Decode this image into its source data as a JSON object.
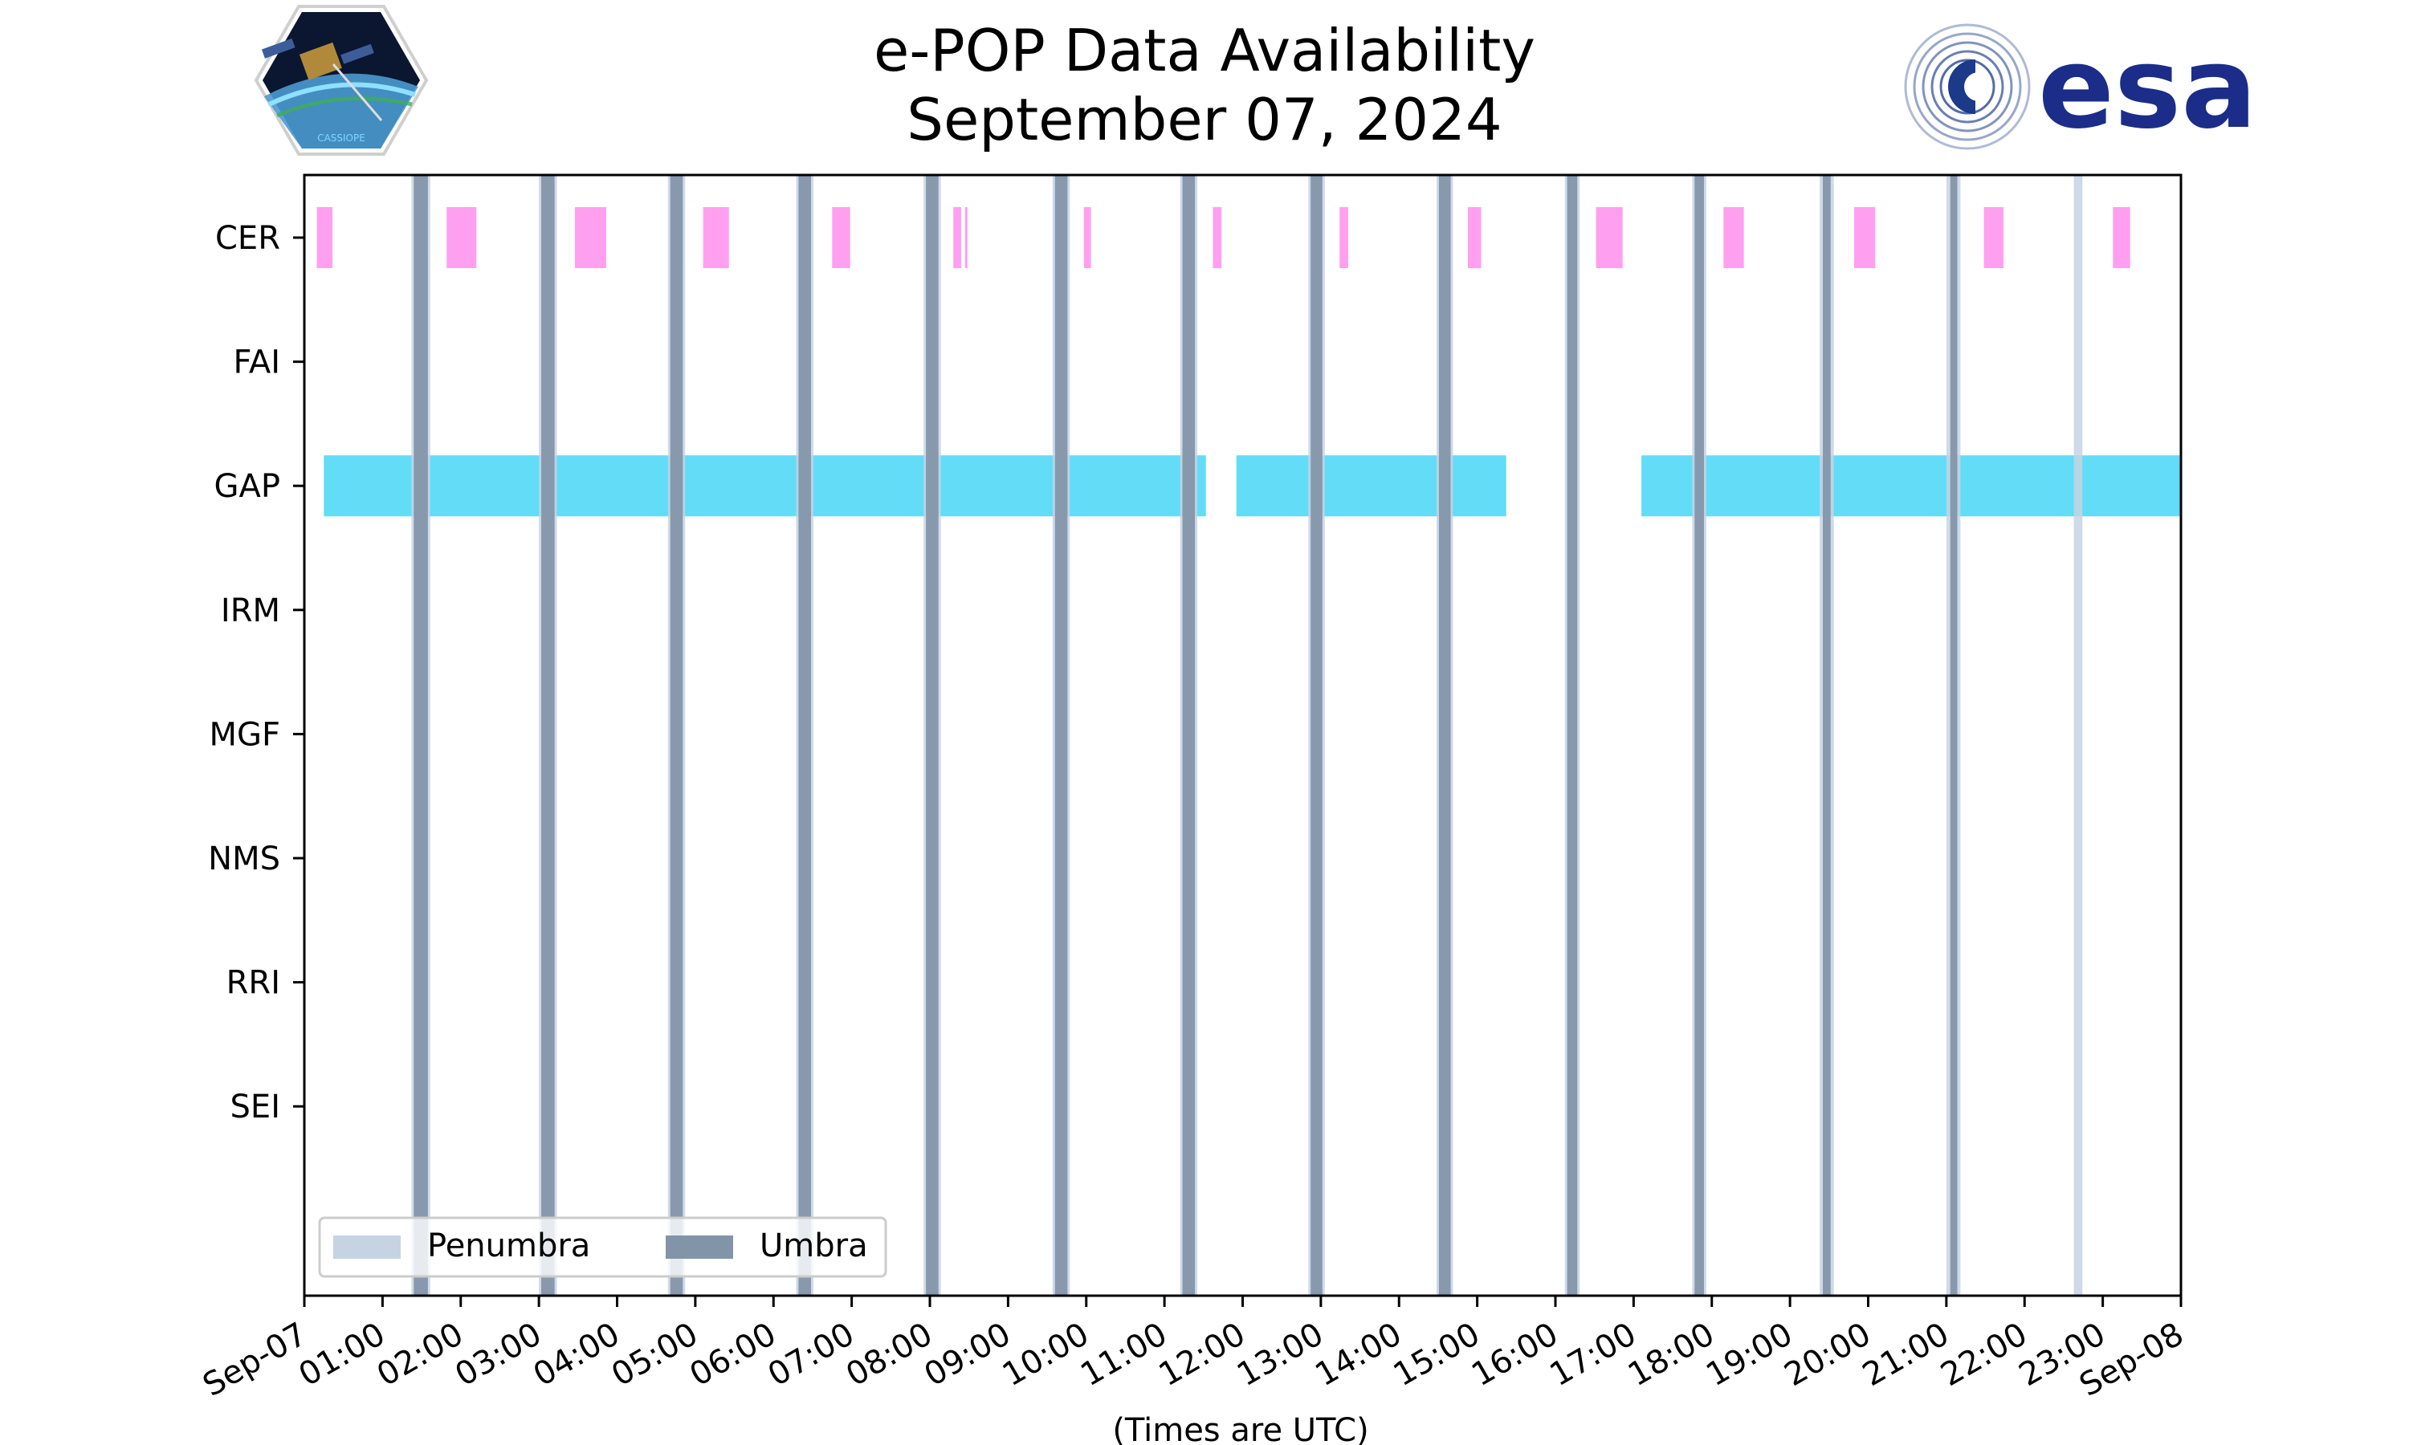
{
  "chart_data": {
    "type": "gantt",
    "title_line1": "e-POP Data Availability",
    "title_line2": "September 07, 2024",
    "xlabel": "(Times are UTC)",
    "x_range_hours": [
      0,
      24
    ],
    "x_tick_labels": [
      "Sep-07",
      "01:00",
      "02:00",
      "03:00",
      "04:00",
      "05:00",
      "06:00",
      "07:00",
      "08:00",
      "09:00",
      "10:00",
      "11:00",
      "12:00",
      "13:00",
      "14:00",
      "15:00",
      "16:00",
      "17:00",
      "18:00",
      "19:00",
      "20:00",
      "21:00",
      "22:00",
      "23:00",
      "Sep-08"
    ],
    "instruments": [
      "CER",
      "FAI",
      "GAP",
      "IRM",
      "MGF",
      "NMS",
      "RRI",
      "SEI"
    ],
    "series": [
      {
        "instrument": "CER",
        "color": "#ff9ff0",
        "intervals_hours": [
          [
            0.16,
            0.36
          ],
          [
            1.82,
            2.2
          ],
          [
            3.46,
            3.86
          ],
          [
            5.1,
            5.43
          ],
          [
            6.75,
            6.98
          ],
          [
            8.3,
            8.4
          ],
          [
            8.45,
            8.48
          ],
          [
            9.97,
            10.06
          ],
          [
            11.62,
            11.73
          ],
          [
            13.24,
            13.35
          ],
          [
            14.88,
            15.05
          ],
          [
            16.52,
            16.86
          ],
          [
            18.15,
            18.41
          ],
          [
            19.82,
            20.09
          ],
          [
            21.48,
            21.73
          ],
          [
            23.13,
            23.35
          ]
        ]
      },
      {
        "instrument": "FAI",
        "color": "#62dcf7",
        "intervals_hours": []
      },
      {
        "instrument": "GAP",
        "color": "#62dcf7",
        "intervals_hours": [
          [
            0.25,
            11.53
          ],
          [
            11.92,
            15.37
          ],
          [
            17.1,
            24.0
          ]
        ]
      },
      {
        "instrument": "IRM",
        "color": "#62dcf7",
        "intervals_hours": []
      },
      {
        "instrument": "MGF",
        "color": "#62dcf7",
        "intervals_hours": []
      },
      {
        "instrument": "NMS",
        "color": "#62dcf7",
        "intervals_hours": []
      },
      {
        "instrument": "RRI",
        "color": "#62dcf7",
        "intervals_hours": []
      },
      {
        "instrument": "SEI",
        "color": "#62dcf7",
        "intervals_hours": []
      }
    ],
    "umbra_hours": [
      [
        1.4,
        1.58
      ],
      [
        3.03,
        3.2
      ],
      [
        4.68,
        4.84
      ],
      [
        6.32,
        6.48
      ],
      [
        7.95,
        8.11
      ],
      [
        9.6,
        9.76
      ],
      [
        11.23,
        11.39
      ],
      [
        12.87,
        13.02
      ],
      [
        14.51,
        14.66
      ],
      [
        16.15,
        16.28
      ],
      [
        17.78,
        17.9
      ],
      [
        19.42,
        19.52
      ],
      [
        21.05,
        21.14
      ]
    ],
    "penumbra_hours": [
      [
        1.37,
        1.61
      ],
      [
        3.0,
        3.23
      ],
      [
        4.65,
        4.87
      ],
      [
        6.29,
        6.51
      ],
      [
        7.92,
        8.14
      ],
      [
        9.57,
        9.79
      ],
      [
        11.2,
        11.42
      ],
      [
        12.84,
        13.05
      ],
      [
        14.48,
        14.69
      ],
      [
        16.12,
        16.31
      ],
      [
        17.75,
        17.93
      ],
      [
        19.38,
        19.56
      ],
      [
        21.0,
        21.18
      ],
      [
        22.63,
        22.74
      ]
    ],
    "umbra_color": "#8294a8",
    "penumbra_color": "#c5d3e3",
    "legend": {
      "position": "lower-left",
      "entries": [
        "Penumbra",
        "Umbra"
      ]
    },
    "grid": false
  },
  "logos": {
    "left": "CASSIOPE",
    "right": "esa"
  }
}
